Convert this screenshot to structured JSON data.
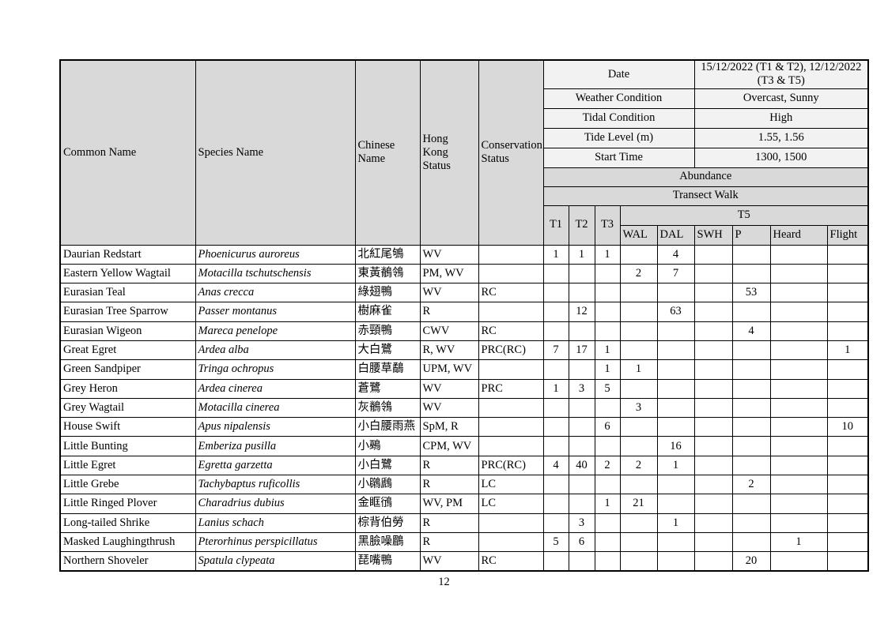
{
  "page": {
    "number": "12"
  },
  "table": {
    "columns": [
      "Common Name",
      "Species Name",
      "Chinese Name",
      "Hong Kong Status",
      "Conservation Status"
    ],
    "info": [
      {
        "label": "Date",
        "value": "15/12/2022 (T1 & T2), 12/12/2022 (T3 & T5)"
      },
      {
        "label": "Weather Condition",
        "value": "Overcast, Sunny"
      },
      {
        "label": "Tidal Condition",
        "value": "High"
      },
      {
        "label": "Tide Level (m)",
        "value": "1.55, 1.56"
      },
      {
        "label": "Start Time",
        "value": "1300, 1500"
      }
    ],
    "abundance_label": "Abundance",
    "transect_walk_label": "Transect Walk",
    "transect_columns": [
      "T1",
      "T2",
      "T3"
    ],
    "t5_label": "T5",
    "t5_columns": [
      "WAL",
      "DAL",
      "SWH",
      "P",
      "Heard",
      "Flight"
    ],
    "colors": {
      "header_gray": "#d9d9d9",
      "info_light": "#f2f2f2",
      "border": "#000000"
    },
    "rows": [
      {
        "common": "Daurian Redstart",
        "species": "Phoenicurus auroreus",
        "chinese": "北紅尾鴝",
        "hk_status": "WV",
        "conservation": "",
        "t1": "1",
        "t2": "1",
        "t3": "1",
        "wal": "",
        "dal": "4",
        "swh": "",
        "p": "",
        "heard": "",
        "flight": ""
      },
      {
        "common": "Eastern Yellow Wagtail",
        "species": "Motacilla tschutschensis",
        "chinese": "東黃鶺鴒",
        "hk_status": "PM, WV",
        "conservation": "",
        "t1": "",
        "t2": "",
        "t3": "",
        "wal": "2",
        "dal": "7",
        "swh": "",
        "p": "",
        "heard": "",
        "flight": ""
      },
      {
        "common": "Eurasian Teal",
        "species": "Anas crecca",
        "chinese": "綠翅鴨",
        "hk_status": "WV",
        "conservation": "RC",
        "t1": "",
        "t2": "",
        "t3": "",
        "wal": "",
        "dal": "",
        "swh": "",
        "p": "53",
        "heard": "",
        "flight": ""
      },
      {
        "common": "Eurasian Tree Sparrow",
        "species": "Passer montanus",
        "chinese": "樹麻雀",
        "hk_status": "R",
        "conservation": "",
        "t1": "",
        "t2": "12",
        "t3": "",
        "wal": "",
        "dal": "63",
        "swh": "",
        "p": "",
        "heard": "",
        "flight": ""
      },
      {
        "common": "Eurasian Wigeon",
        "species": "Mareca penelope",
        "chinese": "赤頸鴨",
        "hk_status": "CWV",
        "conservation": "RC",
        "t1": "",
        "t2": "",
        "t3": "",
        "wal": "",
        "dal": "",
        "swh": "",
        "p": "4",
        "heard": "",
        "flight": ""
      },
      {
        "common": "Great Egret",
        "species": "Ardea alba",
        "chinese": "大白鷺",
        "hk_status": "R, WV",
        "conservation": "PRC(RC)",
        "t1": "7",
        "t2": "17",
        "t3": "1",
        "wal": "",
        "dal": "",
        "swh": "",
        "p": "",
        "heard": "",
        "flight": "1"
      },
      {
        "common": "Green Sandpiper",
        "species": "Tringa ochropus",
        "chinese": "白腰草鷸",
        "hk_status": "UPM, WV",
        "conservation": "",
        "t1": "",
        "t2": "",
        "t3": "1",
        "wal": "1",
        "dal": "",
        "swh": "",
        "p": "",
        "heard": "",
        "flight": ""
      },
      {
        "common": "Grey Heron",
        "species": "Ardea cinerea",
        "chinese": "蒼鷺",
        "hk_status": "WV",
        "conservation": "PRC",
        "t1": "1",
        "t2": "3",
        "t3": "5",
        "wal": "",
        "dal": "",
        "swh": "",
        "p": "",
        "heard": "",
        "flight": ""
      },
      {
        "common": "Grey Wagtail",
        "species": "Motacilla cinerea",
        "chinese": "灰鶺鴒",
        "hk_status": "WV",
        "conservation": "",
        "t1": "",
        "t2": "",
        "t3": "",
        "wal": "3",
        "dal": "",
        "swh": "",
        "p": "",
        "heard": "",
        "flight": ""
      },
      {
        "common": "House Swift",
        "species": "Apus nipalensis",
        "chinese": "小白腰雨燕",
        "hk_status": "SpM, R",
        "conservation": "",
        "t1": "",
        "t2": "",
        "t3": "6",
        "wal": "",
        "dal": "",
        "swh": "",
        "p": "",
        "heard": "",
        "flight": "10"
      },
      {
        "common": "Little Bunting",
        "species": "Emberiza pusilla",
        "chinese": "小鵐",
        "hk_status": "CPM, WV",
        "conservation": "",
        "t1": "",
        "t2": "",
        "t3": "",
        "wal": "",
        "dal": "16",
        "swh": "",
        "p": "",
        "heard": "",
        "flight": ""
      },
      {
        "common": "Little Egret",
        "species": "Egretta garzetta",
        "chinese": "小白鷺",
        "hk_status": "R",
        "conservation": "PRC(RC)",
        "t1": "4",
        "t2": "40",
        "t3": "2",
        "wal": "2",
        "dal": "1",
        "swh": "",
        "p": "",
        "heard": "",
        "flight": ""
      },
      {
        "common": "Little Grebe",
        "species": "Tachybaptus ruficollis",
        "chinese": "小鸊鷉",
        "hk_status": "R",
        "conservation": "LC",
        "t1": "",
        "t2": "",
        "t3": "",
        "wal": "",
        "dal": "",
        "swh": "",
        "p": "2",
        "heard": "",
        "flight": ""
      },
      {
        "common": "Little Ringed Plover",
        "species": "Charadrius dubius",
        "chinese": "金眶鴴",
        "hk_status": "WV, PM",
        "conservation": "LC",
        "t1": "",
        "t2": "",
        "t3": "1",
        "wal": "21",
        "dal": "",
        "swh": "",
        "p": "",
        "heard": "",
        "flight": ""
      },
      {
        "common": "Long-tailed Shrike",
        "species": "Lanius schach",
        "chinese": "棕背伯勞",
        "hk_status": "R",
        "conservation": "",
        "t1": "",
        "t2": "3",
        "t3": "",
        "wal": "",
        "dal": "1",
        "swh": "",
        "p": "",
        "heard": "",
        "flight": ""
      },
      {
        "common": "Masked Laughingthrush",
        "species": "Pterorhinus perspicillatus",
        "chinese": "黑臉噪鶥",
        "hk_status": "R",
        "conservation": "",
        "t1": "5",
        "t2": "6",
        "t3": "",
        "wal": "",
        "dal": "",
        "swh": "",
        "p": "",
        "heard": "1",
        "flight": ""
      },
      {
        "common": "Northern Shoveler",
        "species": "Spatula clypeata",
        "chinese": "琵嘴鴨",
        "hk_status": "WV",
        "conservation": "RC",
        "t1": "",
        "t2": "",
        "t3": "",
        "wal": "",
        "dal": "",
        "swh": "",
        "p": "20",
        "heard": "",
        "flight": ""
      }
    ]
  }
}
